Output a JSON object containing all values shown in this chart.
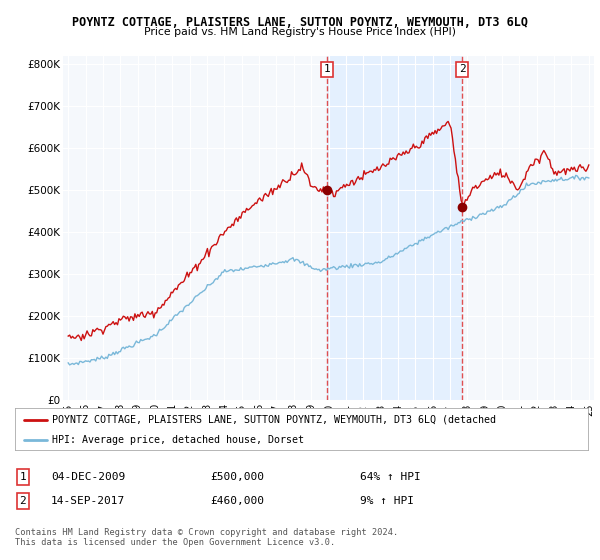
{
  "title": "POYNTZ COTTAGE, PLAISTERS LANE, SUTTON POYNTZ, WEYMOUTH, DT3 6LQ",
  "subtitle": "Price paid vs. HM Land Registry's House Price Index (HPI)",
  "ylabel_ticks": [
    "£0",
    "£100K",
    "£200K",
    "£300K",
    "£400K",
    "£500K",
    "£600K",
    "£700K",
    "£800K"
  ],
  "ytick_values": [
    0,
    100000,
    200000,
    300000,
    400000,
    500000,
    600000,
    700000,
    800000
  ],
  "ylim": [
    0,
    820000
  ],
  "xlim_left": 1994.7,
  "xlim_right": 2025.3,
  "sale1_date": 2009.92,
  "sale1_price": 500000,
  "sale2_date": 2017.71,
  "sale2_price": 460000,
  "hpi_color": "#7ab8d9",
  "price_color": "#cc1111",
  "sale_marker_color": "#8b0000",
  "shade_color": "#ddeeff",
  "dashed_color": "#dd3333",
  "background_color": "#f5f8fc",
  "grid_color": "#ffffff",
  "legend_text_red": "POYNTZ COTTAGE, PLAISTERS LANE, SUTTON POYNTZ, WEYMOUTH, DT3 6LQ (detached",
  "legend_text_blue": "HPI: Average price, detached house, Dorset",
  "table_row1": [
    "1",
    "04-DEC-2009",
    "£500,000",
    "64% ↑ HPI"
  ],
  "table_row2": [
    "2",
    "14-SEP-2017",
    "£460,000",
    "9% ↑ HPI"
  ],
  "footer": "Contains HM Land Registry data © Crown copyright and database right 2024.\nThis data is licensed under the Open Government Licence v3.0."
}
